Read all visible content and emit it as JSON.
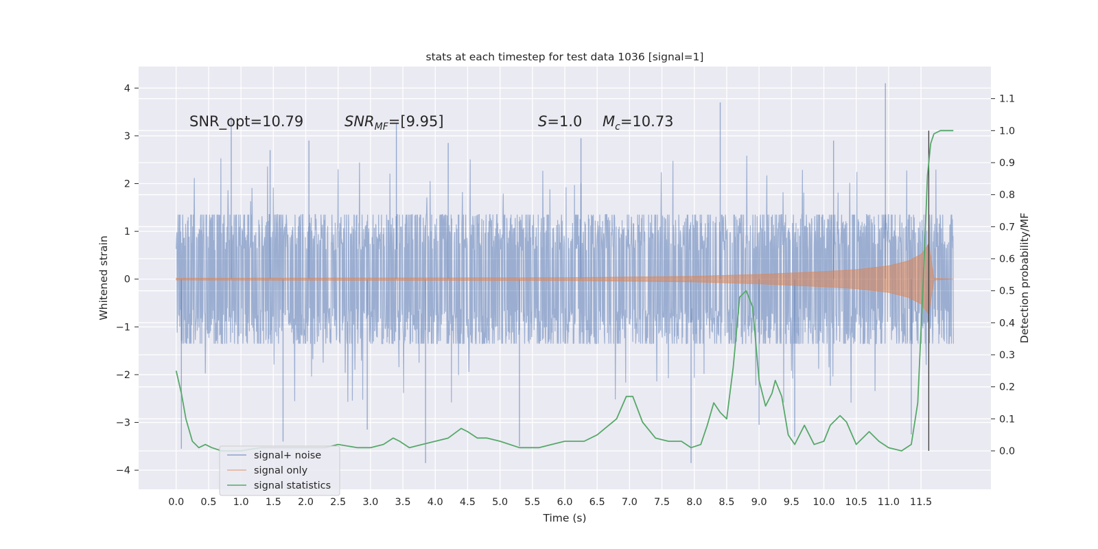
{
  "chart_data": {
    "type": "line",
    "title": "stats at each timestep for test data 1036 [signal=1]",
    "xlabel": "Time (s)",
    "ylabel": "Whitened strain",
    "y2label": "Detection probability/MF",
    "xlim": [
      -0.58,
      12.58
    ],
    "ylim": [
      -4.4,
      4.45
    ],
    "y2lim": [
      -0.12,
      1.2
    ],
    "x_ticks": [
      "0.0",
      "0.5",
      "1.0",
      "1.5",
      "2.0",
      "2.5",
      "3.0",
      "3.5",
      "4.0",
      "4.5",
      "5.0",
      "5.5",
      "6.0",
      "6.5",
      "7.0",
      "7.5",
      "8.0",
      "8.5",
      "9.0",
      "9.5",
      "10.0",
      "10.5",
      "11.0",
      "11.5"
    ],
    "y_ticks": [
      "4",
      "3",
      "2",
      "1",
      "0",
      "−1",
      "−2",
      "−3",
      "−4"
    ],
    "y2_ticks": [
      "1.1",
      "1.0",
      "0.9",
      "0.8",
      "0.7",
      "0.6",
      "0.5",
      "0.4",
      "0.3",
      "0.2",
      "0.1",
      "0.0"
    ],
    "grid": true,
    "legend_position": "lower-left",
    "annotations": {
      "snr_opt": "SNR_opt=10.79",
      "snr_mf_sym": "SNR",
      "snr_mf_sub": "MF",
      "snr_mf_val": "=[9.95]",
      "s_sym": "S",
      "s_val": "=1.0",
      "mc_sym": "M",
      "mc_sub": "c",
      "mc_val": "=10.73"
    },
    "merger_time": 11.62,
    "series": [
      {
        "name": "signal+ noise",
        "color": "#4c72b0",
        "axis": "left",
        "kind": "noise",
        "t_range": [
          0.0,
          12.0
        ],
        "envelope": 1.35,
        "spikes": [
          {
            "x": 0.08,
            "y": -3.55
          },
          {
            "x": 0.85,
            "y": 3.4
          },
          {
            "x": 1.45,
            "y": 2.7
          },
          {
            "x": 1.65,
            "y": -3.4
          },
          {
            "x": 2.05,
            "y": 2.9
          },
          {
            "x": 2.95,
            "y": -3.15
          },
          {
            "x": 3.4,
            "y": 3.25
          },
          {
            "x": 3.85,
            "y": -3.85
          },
          {
            "x": 4.2,
            "y": 2.85
          },
          {
            "x": 5.3,
            "y": -3.5
          },
          {
            "x": 6.25,
            "y": 2.95
          },
          {
            "x": 7.95,
            "y": -3.85
          },
          {
            "x": 8.4,
            "y": 3.7
          },
          {
            "x": 9.0,
            "y": -3.05
          },
          {
            "x": 9.55,
            "y": -3.3
          },
          {
            "x": 10.15,
            "y": 2.9
          },
          {
            "x": 10.95,
            "y": 4.1
          },
          {
            "x": 11.35,
            "y": -3.25
          }
        ]
      },
      {
        "name": "signal only",
        "color": "#dd8452",
        "axis": "left",
        "kind": "chirp",
        "amplitude_points": [
          [
            0.0,
            0.02
          ],
          [
            6.0,
            0.03
          ],
          [
            8.0,
            0.06
          ],
          [
            9.0,
            0.1
          ],
          [
            10.0,
            0.16
          ],
          [
            10.5,
            0.2
          ],
          [
            11.0,
            0.28
          ],
          [
            11.3,
            0.38
          ],
          [
            11.5,
            0.52
          ],
          [
            11.6,
            0.7
          ],
          [
            11.62,
            0.75
          ],
          [
            11.7,
            0.02
          ],
          [
            12.0,
            0.0
          ]
        ]
      },
      {
        "name": "signal statistics",
        "color": "#55a868",
        "axis": "right",
        "x": [
          0.0,
          0.08,
          0.15,
          0.25,
          0.35,
          0.45,
          0.55,
          0.7,
          1.0,
          1.3,
          1.6,
          2.0,
          2.3,
          2.5,
          2.8,
          3.0,
          3.2,
          3.35,
          3.45,
          3.6,
          3.8,
          4.0,
          4.2,
          4.4,
          4.5,
          4.65,
          4.8,
          5.0,
          5.3,
          5.6,
          5.8,
          6.0,
          6.3,
          6.5,
          6.8,
          6.95,
          7.05,
          7.2,
          7.4,
          7.6,
          7.8,
          7.95,
          8.1,
          8.2,
          8.3,
          8.4,
          8.5,
          8.6,
          8.7,
          8.8,
          8.9,
          9.0,
          9.1,
          9.2,
          9.25,
          9.35,
          9.45,
          9.55,
          9.7,
          9.85,
          10.0,
          10.1,
          10.25,
          10.35,
          10.5,
          10.7,
          10.85,
          11.0,
          11.2,
          11.35,
          11.45,
          11.55,
          11.6,
          11.65,
          11.7,
          11.8,
          11.9,
          12.0
        ],
        "y": [
          0.25,
          0.18,
          0.1,
          0.03,
          0.01,
          0.02,
          0.01,
          0.0,
          0.0,
          0.01,
          0.01,
          0.01,
          0.01,
          0.02,
          0.01,
          0.01,
          0.02,
          0.04,
          0.03,
          0.01,
          0.02,
          0.03,
          0.04,
          0.07,
          0.06,
          0.04,
          0.04,
          0.03,
          0.01,
          0.01,
          0.02,
          0.03,
          0.03,
          0.05,
          0.1,
          0.17,
          0.17,
          0.09,
          0.04,
          0.03,
          0.03,
          0.01,
          0.02,
          0.08,
          0.15,
          0.12,
          0.1,
          0.26,
          0.48,
          0.5,
          0.45,
          0.22,
          0.14,
          0.18,
          0.22,
          0.17,
          0.05,
          0.02,
          0.08,
          0.02,
          0.03,
          0.08,
          0.11,
          0.09,
          0.02,
          0.06,
          0.03,
          0.01,
          0.0,
          0.02,
          0.15,
          0.6,
          0.86,
          0.96,
          0.99,
          1.0,
          1.0,
          1.0
        ]
      }
    ]
  }
}
